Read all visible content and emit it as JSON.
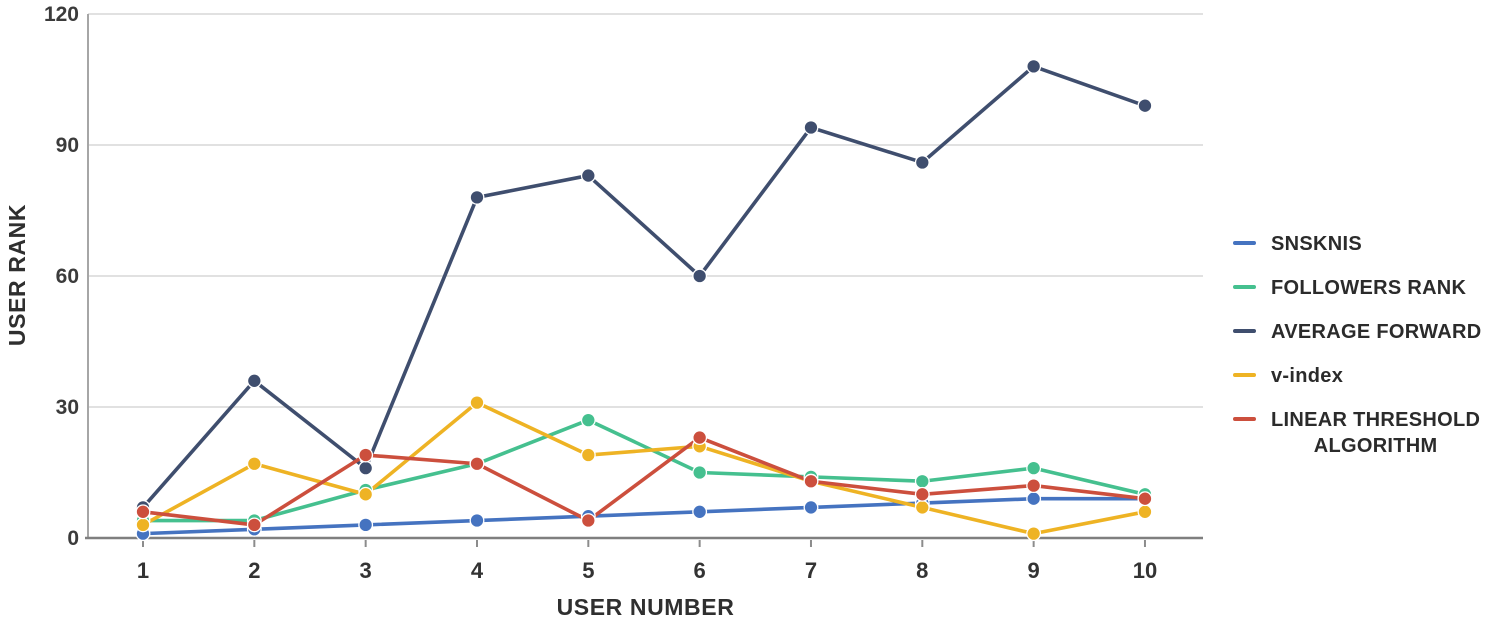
{
  "chart_data": {
    "type": "line",
    "title": "",
    "xlabel": "USER NUMBER",
    "ylabel": "USER RANK",
    "x": [
      1,
      2,
      3,
      4,
      5,
      6,
      7,
      8,
      9,
      10
    ],
    "y_ticks": [
      0,
      30,
      60,
      90,
      120
    ],
    "ylim": [
      0,
      120
    ],
    "grid": "horizontal-only",
    "legend_position": "right",
    "series": [
      {
        "name": "SNSKNIS",
        "color": "#4573c0",
        "values": [
          1,
          2,
          3,
          4,
          5,
          6,
          7,
          8,
          9,
          9
        ]
      },
      {
        "name": "FOLLOWERS RANK",
        "color": "#45c08f",
        "values": [
          4,
          4,
          11,
          17,
          27,
          15,
          14,
          13,
          16,
          10
        ]
      },
      {
        "name": "AVERAGE FORWARD",
        "color": "#3f4e6e",
        "values": [
          7,
          36,
          16,
          78,
          83,
          60,
          94,
          86,
          108,
          99
        ]
      },
      {
        "name": "v-index",
        "color": "#eeb324",
        "values": [
          3,
          17,
          10,
          31,
          19,
          21,
          13,
          7,
          1,
          6
        ]
      },
      {
        "name": "LINEAR THRESHOLD ALGORITHM",
        "color": "#cc4f3d",
        "values": [
          6,
          3,
          19,
          17,
          4,
          23,
          13,
          10,
          12,
          9
        ]
      }
    ]
  },
  "legend": {
    "items": [
      {
        "label": "SNSKNIS"
      },
      {
        "label": "FOLLOWERS RANK"
      },
      {
        "label": "AVERAGE FORWARD"
      },
      {
        "label": "v-index"
      },
      {
        "label": "LINEAR THRESHOLD\nALGORITHM"
      }
    ]
  },
  "colors": {
    "gridline": "#d7d7d7",
    "y_axis_line": "#a6a6a6",
    "x_axis_line": "#7f7f7f",
    "tick_mark": "#8c8c8c",
    "marker_halo": "#ffffff"
  }
}
